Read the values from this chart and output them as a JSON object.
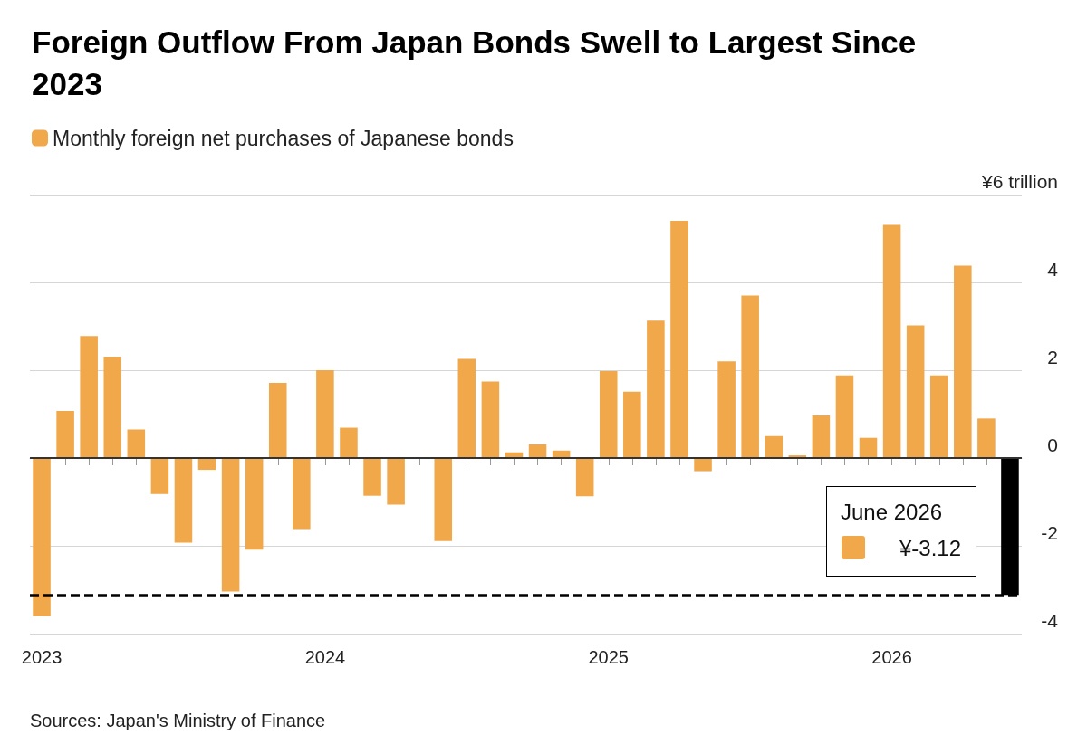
{
  "chart_data": {
    "type": "bar",
    "title": "Foreign Outflow From Japan Bonds Swell to Largest Since 2023",
    "categories": [
      "2023",
      null,
      null,
      null,
      null,
      null,
      null,
      null,
      null,
      null,
      null,
      null,
      "2024",
      null,
      null,
      null,
      null,
      null,
      null,
      null,
      null,
      null,
      null,
      null,
      "2025",
      null,
      null,
      null,
      null,
      null,
      null,
      null,
      null,
      null,
      null,
      null,
      "2026",
      null,
      null,
      null,
      null,
      null
    ],
    "series": [
      {
        "name": "Monthly foreign net purchases of Japanese bonds",
        "color": "#f0a84b",
        "values": [
          -3.6,
          1.07,
          2.78,
          2.31,
          0.65,
          -0.82,
          -1.93,
          -0.27,
          -3.04,
          -2.09,
          1.71,
          -1.62,
          2.0,
          0.69,
          -0.86,
          -1.06,
          0,
          -1.89,
          2.26,
          1.74,
          0.13,
          0.31,
          0.17,
          -0.87,
          1.98,
          1.51,
          3.13,
          5.4,
          -0.3,
          2.2,
          3.7,
          0.5,
          0.06,
          0.97,
          1.88,
          0.46,
          5.31,
          3.02,
          1.88,
          4.38,
          0.9,
          -3.12
        ],
        "colors": [
          "#f0a84b",
          "#f0a84b",
          "#f0a84b",
          "#f0a84b",
          "#f0a84b",
          "#f0a84b",
          "#f0a84b",
          "#f0a84b",
          "#f0a84b",
          "#f0a84b",
          "#f0a84b",
          "#f0a84b",
          "#f0a84b",
          "#f0a84b",
          "#f0a84b",
          "#f0a84b",
          "#f0a84b",
          "#f0a84b",
          "#f0a84b",
          "#f0a84b",
          "#f0a84b",
          "#f0a84b",
          "#f0a84b",
          "#f0a84b",
          "#f0a84b",
          "#f0a84b",
          "#f0a84b",
          "#f0a84b",
          "#f0a84b",
          "#f0a84b",
          "#f0a84b",
          "#f0a84b",
          "#f0a84b",
          "#f0a84b",
          "#f0a84b",
          "#f0a84b",
          "#f0a84b",
          "#f0a84b",
          "#f0a84b",
          "#f0a84b",
          "#f0a84b",
          "#000000"
        ]
      }
    ],
    "ylim": [
      -4,
      6
    ],
    "yticks": [
      -4,
      -2,
      0,
      2,
      4,
      {
        "value": 6,
        "label": "¥6 trillion"
      }
    ],
    "grid": "y",
    "legend": "top left",
    "ref_lines": [
      {
        "axis": "y",
        "value": 0,
        "color": "#333333",
        "line_style": "solid"
      },
      {
        "axis": "y",
        "value": -3.12,
        "color": "#000000",
        "line_style": "dashed"
      }
    ],
    "annotations": [
      "June 2026",
      "¥-3.12",
      "Sources: Japan's Ministry of Finance"
    ]
  }
}
